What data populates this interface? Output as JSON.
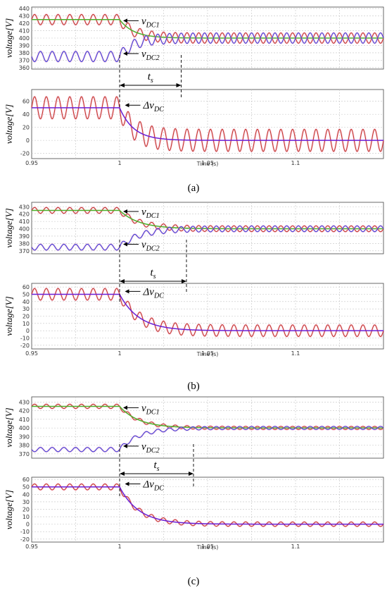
{
  "figure": {
    "panels": [
      {
        "tag": "(a)",
        "top": {
          "ylabel": "voltage[V]",
          "ylim": [
            358,
            442
          ],
          "yticks": [
            360,
            370,
            380,
            390,
            400,
            410,
            420,
            430,
            440
          ],
          "label_upper": "vDC1",
          "label_lower": "vDC2"
        },
        "bottom": {
          "ylabel": "voltage[V]",
          "ylim": [
            -28,
            78
          ],
          "yticks": [
            -20,
            0,
            20,
            40,
            60
          ],
          "label": "ΔvDC"
        },
        "ts_label": "ts",
        "x_title": "Time (s)"
      },
      {
        "tag": "(b)",
        "top": {
          "ylabel": "voltage[V]",
          "ylim": [
            366,
            436
          ],
          "yticks": [
            370,
            380,
            390,
            400,
            410,
            420,
            430
          ],
          "label_upper": "vDC1",
          "label_lower": "vDC2"
        },
        "bottom": {
          "ylabel": "voltage[V]",
          "ylim": [
            -25,
            65
          ],
          "yticks": [
            -20,
            -10,
            0,
            10,
            20,
            30,
            40,
            50,
            60
          ],
          "label": "ΔvDC"
        },
        "ts_label": "ts",
        "x_title": "Time (s)"
      },
      {
        "tag": "(c)",
        "top": {
          "ylabel": "voltage[V]",
          "ylim": [
            365,
            436
          ],
          "yticks": [
            370,
            380,
            390,
            400,
            410,
            420,
            430
          ],
          "label_upper": "vDC1",
          "label_lower": "vDC2"
        },
        "bottom": {
          "ylabel": "voltage[V]",
          "ylim": [
            -24,
            63
          ],
          "yticks": [
            -20,
            -10,
            0,
            10,
            20,
            30,
            40,
            50,
            60
          ],
          "label": "ΔvDC"
        },
        "ts_label": "ts",
        "x_title": "Time (s)"
      }
    ]
  },
  "chart_data": [
    {
      "type": "line",
      "panel": "a-top",
      "xlim": [
        0.95,
        1.15
      ],
      "xticks": [
        0.95,
        1,
        1.05,
        1.1
      ],
      "grid": true,
      "series": [
        {
          "name": "vDC1",
          "color": "#c0392b",
          "pre": 425,
          "post": 400,
          "ripple_amp": 7,
          "ripple_freq_hz": 150,
          "settle_tau_s": 0.008,
          "post_ripple_amp": 7
        },
        {
          "name": "vDC1 average",
          "color": "#4caf2a",
          "pre": 425,
          "post": 400,
          "settle_tau_s": 0.008
        },
        {
          "name": "vDC2",
          "color": "#3b3bd6",
          "pre": 375,
          "post": 400,
          "ripple_amp": 7,
          "ripple_freq_hz": 150,
          "settle_tau_s": 0.008,
          "post_ripple_amp": 7
        }
      ],
      "step_time": 1.0,
      "ts_end": 1.035
    },
    {
      "type": "line",
      "panel": "a-bottom",
      "xlim": [
        0.95,
        1.15
      ],
      "xticks": [
        0.95,
        1,
        1.05,
        1.1
      ],
      "grid": true,
      "series": [
        {
          "name": "ΔvDC",
          "color": "#c0392b",
          "pre": 50,
          "post": 0,
          "ripple_amp": 17,
          "ripple_freq_hz": 150,
          "settle_tau_s": 0.008,
          "post_ripple_amp": 17
        },
        {
          "name": "ΔvDC average",
          "color": "#6a1fd6",
          "pre": 50,
          "post": 0,
          "settle_tau_s": 0.008
        }
      ],
      "step_time": 1.0,
      "ts_end": 1.035
    },
    {
      "type": "line",
      "panel": "b-top",
      "xlim": [
        0.95,
        1.15
      ],
      "xticks": [
        0.95,
        1,
        1.05,
        1.1
      ],
      "grid": true,
      "series": [
        {
          "name": "vDC1",
          "color": "#c0392b",
          "pre": 425,
          "post": 400,
          "ripple_amp": 4,
          "ripple_freq_hz": 150,
          "settle_tau_s": 0.011,
          "post_ripple_amp": 4
        },
        {
          "name": "vDC1 average",
          "color": "#4caf2a",
          "pre": 425,
          "post": 400,
          "settle_tau_s": 0.011
        },
        {
          "name": "vDC2",
          "color": "#3b3bd6",
          "pre": 375,
          "post": 400,
          "ripple_amp": 4,
          "ripple_freq_hz": 150,
          "settle_tau_s": 0.011,
          "post_ripple_amp": 4
        }
      ],
      "step_time": 1.0,
      "ts_end": 1.038
    },
    {
      "type": "line",
      "panel": "b-bottom",
      "xlim": [
        0.95,
        1.15
      ],
      "xticks": [
        0.95,
        1,
        1.05,
        1.1
      ],
      "grid": true,
      "series": [
        {
          "name": "ΔvDC",
          "color": "#c0392b",
          "pre": 50,
          "post": 0,
          "ripple_amp": 8,
          "ripple_freq_hz": 150,
          "settle_tau_s": 0.011,
          "post_ripple_amp": 8
        },
        {
          "name": "ΔvDC average",
          "color": "#6a1fd6",
          "pre": 50,
          "post": 0,
          "settle_tau_s": 0.011
        }
      ],
      "step_time": 1.0,
      "ts_end": 1.038
    },
    {
      "type": "line",
      "panel": "c-top",
      "xlim": [
        0.95,
        1.15
      ],
      "xticks": [
        0.95,
        1,
        1.05,
        1.1
      ],
      "grid": true,
      "series": [
        {
          "name": "vDC1",
          "color": "#c0392b",
          "pre": 425,
          "post": 400,
          "ripple_amp": 2.5,
          "ripple_freq_hz": 150,
          "settle_tau_s": 0.011,
          "post_ripple_amp": 1.8
        },
        {
          "name": "vDC1 average",
          "color": "#4caf2a",
          "pre": 425,
          "post": 400,
          "settle_tau_s": 0.011
        },
        {
          "name": "vDC2",
          "color": "#3b3bd6",
          "pre": 375,
          "post": 400,
          "ripple_amp": 2.5,
          "ripple_freq_hz": 150,
          "settle_tau_s": 0.011,
          "post_ripple_amp": 1.8
        }
      ],
      "step_time": 1.0,
      "ts_end": 1.042
    },
    {
      "type": "line",
      "panel": "c-bottom",
      "xlim": [
        0.95,
        1.15
      ],
      "xticks": [
        0.95,
        1,
        1.05,
        1.1
      ],
      "grid": true,
      "series": [
        {
          "name": "ΔvDC",
          "color": "#c0392b",
          "pre": 50,
          "post": 0,
          "ripple_amp": 4,
          "ripple_freq_hz": 150,
          "settle_tau_s": 0.011,
          "post_ripple_amp": 3
        },
        {
          "name": "ΔvDC average",
          "color": "#6a1fd6",
          "pre": 50,
          "post": 0,
          "settle_tau_s": 0.011
        }
      ],
      "step_time": 1.0,
      "ts_end": 1.042
    }
  ]
}
